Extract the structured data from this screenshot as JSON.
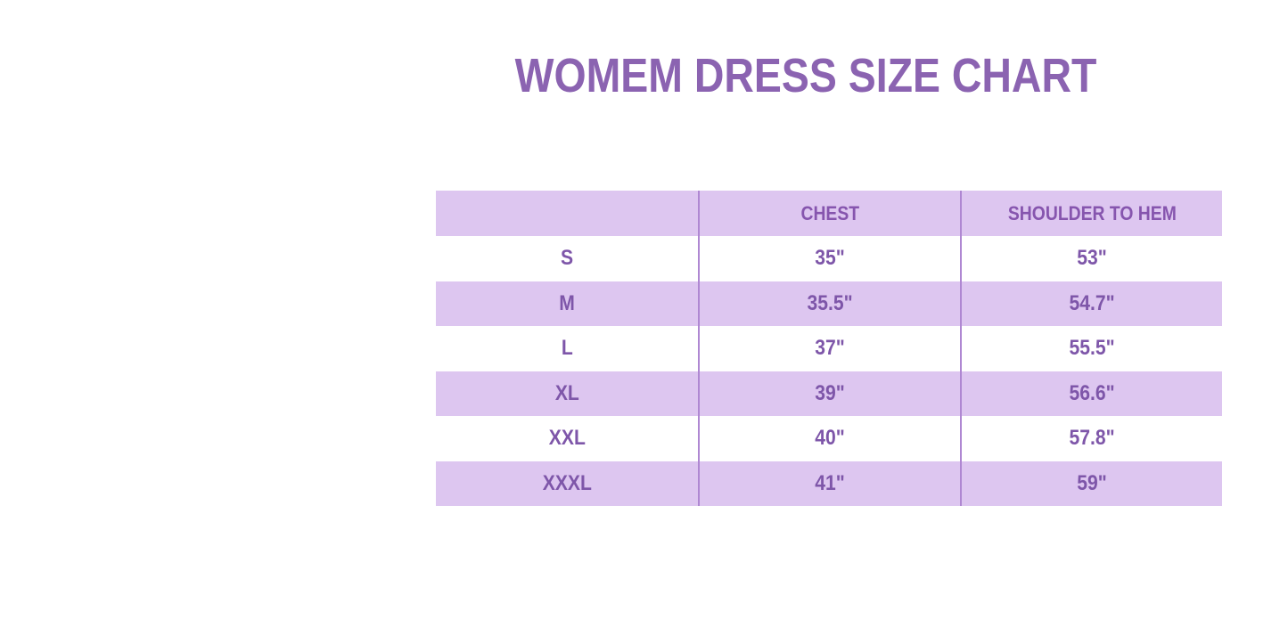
{
  "page": {
    "title": "WOMEM DRESS SIZE CHART"
  },
  "chart_data": {
    "type": "table",
    "title": "WOMEM DRESS SIZE CHART",
    "columns": [
      "",
      "CHEST",
      "SHOULDER TO HEM"
    ],
    "rows": [
      [
        "S",
        "35\"",
        "53\""
      ],
      [
        "M",
        "35.5\"",
        "54.7\""
      ],
      [
        "L",
        "37\"",
        "55.5\""
      ],
      [
        "XL",
        "39\"",
        "56.6\""
      ],
      [
        "XXL",
        "40\"",
        "57.8\""
      ],
      [
        "XXXL",
        "41\"",
        "59\""
      ]
    ],
    "units": "inches",
    "layout": {
      "striped": true,
      "shaded_rows": [
        "header",
        "M",
        "XL",
        "XXXL"
      ],
      "column_count": 3,
      "equal_column_widths": true
    }
  },
  "colors": {
    "background": "#ffffff",
    "title": "#8b63b1",
    "header_text": "#8655ae",
    "cell_text": "#7e56a9",
    "row_shade": "#ddc6f0",
    "divider": "#af87d2"
  }
}
